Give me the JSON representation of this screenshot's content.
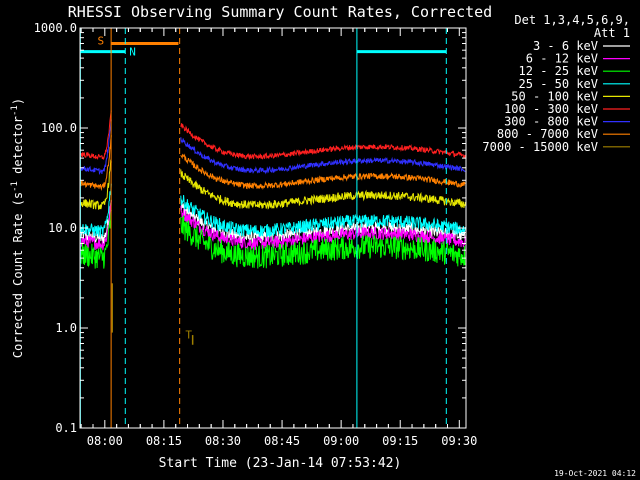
{
  "chart_data": {
    "type": "line",
    "title": "RHESSI Observing Summary Count Rates, Corrected",
    "xlabel": "Start Time (23-Jan-14 07:53:42)",
    "ylabel_main": "Corrected Count Rate (s",
    "ylabel_sup1": "-1",
    "ylabel_mid": " detector",
    "ylabel_sup2": "-1",
    "ylabel_end": ")",
    "yscale": "log",
    "ylim": [
      0.1,
      1000
    ],
    "xlim_minutes": [
      0,
      98
    ],
    "ytick_labels": [
      "0.1",
      "1.0",
      "10.0",
      "100.0",
      "1000.0"
    ],
    "xticks": [
      {
        "minute": 6.3,
        "label": "08:00"
      },
      {
        "minute": 21.3,
        "label": "08:15"
      },
      {
        "minute": 36.3,
        "label": "08:30"
      },
      {
        "minute": 51.3,
        "label": "08:45"
      },
      {
        "minute": 66.3,
        "label": "09:00"
      },
      {
        "minute": 81.3,
        "label": "09:15"
      },
      {
        "minute": 96.3,
        "label": "09:30"
      }
    ],
    "legend_header": [
      "Det 1,3,4,5,6,9,",
      "Att 1"
    ],
    "legend_position": "right",
    "timestamp": "19-Oct-2021 04:12",
    "series": [
      {
        "name": "3 - 6 keV",
        "color": "#ffffff",
        "base": 8.5,
        "noise": 0.15,
        "spike": 2.5
      },
      {
        "name": "6 - 12 keV",
        "color": "#ff00ff",
        "base": 7.5,
        "noise": 0.15,
        "spike": 2.5
      },
      {
        "name": "12 - 25 keV",
        "color": "#00ff00",
        "base": 5.5,
        "noise": 0.28,
        "spike": 2.5
      },
      {
        "name": "25 - 50 keV",
        "color": "#00ffff",
        "base": 10.0,
        "noise": 0.15,
        "spike": 3.0
      },
      {
        "name": "50 - 100 keV",
        "color": "#e6e600",
        "base": 18.0,
        "noise": 0.1,
        "spike": 2.8
      },
      {
        "name": "100 - 300 keV",
        "color": "#ff2020",
        "base": 55.0,
        "noise": 0.06,
        "spike": 2.8
      },
      {
        "name": "300 - 800 keV",
        "color": "#3030ff",
        "base": 40.0,
        "noise": 0.06,
        "spike": 3.2
      },
      {
        "name": "800 - 7000 keV",
        "color": "#ff8000",
        "base": 28.0,
        "noise": 0.07,
        "spike": 3.0
      },
      {
        "name": "7000 - 15000 keV",
        "color": "#a08000",
        "base": null,
        "noise": 0.0,
        "spike": 0
      }
    ],
    "data_gap_minutes": [
      8.0,
      25.5
    ],
    "orange_s_segment_label": "S",
    "orange_s_segment_minutes": [
      8.0,
      25.0
    ],
    "orange_s_segment_value": 700,
    "cyan_n_segments_label": "N",
    "cyan_n_segments": [
      [
        0,
        11.5
      ],
      [
        70.3,
        93.0
      ]
    ],
    "cyan_n_value": 580,
    "orange_vlines_minutes": [
      7.9
    ],
    "orange_dashed_vlines_minutes": [
      25.3
    ],
    "cyan_vlines_minutes": [
      0.1,
      70.3
    ],
    "cyan_dashed_vlines_minutes": [
      11.5,
      93.0
    ],
    "t_marker_label": "T",
    "t_marker_minute": 26.0,
    "t_marker_value": 0.75
  }
}
